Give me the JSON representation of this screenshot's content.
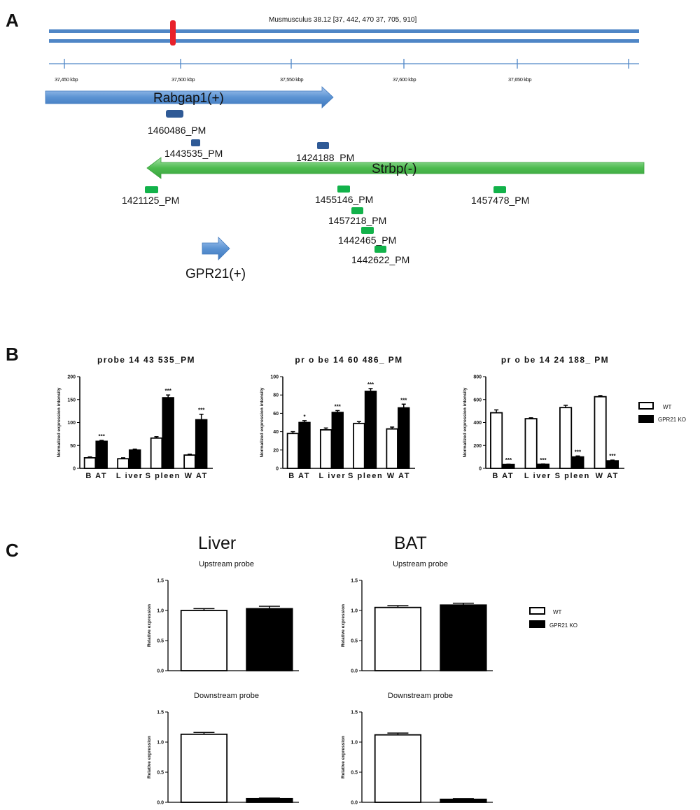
{
  "panel_letters": {
    "a": "A",
    "b": "B",
    "c": "C"
  },
  "panel_a": {
    "chromosome_label": "Musmusculus 38.12 [37, 442, 470 37, 705, 910]",
    "axis_ticks": [
      "37,450 kbp",
      "37,500 kbp",
      "37,550 kbp",
      "37,600 kbp",
      "37,650 kbp"
    ],
    "genes": {
      "rabgap1": "Rabgap1(+)",
      "strbp": "Strbp(-)",
      "gpr21": "GPR21(+)"
    },
    "probes_blue": [
      "1460486_PM",
      "1443535_PM",
      "1424188_PM"
    ],
    "probes_green": [
      "1421125_PM",
      "1455146_PM",
      "1457218_PM",
      "1442465_PM",
      "1442622_PM",
      "1457478_PM"
    ],
    "colors": {
      "chromosome": "#4f86c6",
      "marker": "#e8212b",
      "rabgap1_arrow": "#5b93d3",
      "strbp_arrow": "#4dbb4f",
      "probe_blue": "#2f5a96",
      "probe_green": "#12b24a"
    }
  },
  "legend": {
    "wt": "WT",
    "ko": "GPR21 KO"
  },
  "chart_data": [
    {
      "type": "bar",
      "title": "probe 14 43 535_PM",
      "ylabel": "Normalized expression intensity",
      "ylim": [
        0,
        200
      ],
      "yticks": [
        "0",
        "50",
        "100",
        "150",
        "200"
      ],
      "categories": [
        "B AT",
        "L iver",
        "S pleen",
        "W AT"
      ],
      "series": [
        {
          "name": "WT",
          "values": [
            23,
            21,
            66,
            29
          ],
          "errors": [
            2,
            2,
            3,
            2
          ]
        },
        {
          "name": "GPR21 KO",
          "values": [
            59,
            40,
            154,
            106
          ],
          "errors": [
            2,
            2,
            6,
            12
          ]
        }
      ],
      "significance": [
        "***",
        "",
        "***",
        "***"
      ]
    },
    {
      "type": "bar",
      "title": "pr o be 14 60 486_ PM",
      "ylabel": "Normalized expression intensity",
      "ylim": [
        0,
        100
      ],
      "yticks": [
        "0",
        "20",
        "40",
        "60",
        "80",
        "100"
      ],
      "categories": [
        "B AT",
        "L iver",
        "S pleen",
        "W AT"
      ],
      "series": [
        {
          "name": "WT",
          "values": [
            38,
            42,
            49,
            43
          ],
          "errors": [
            2,
            2,
            2,
            2
          ]
        },
        {
          "name": "GPR21 KO",
          "values": [
            50,
            61,
            84,
            66
          ],
          "errors": [
            2,
            2,
            3,
            4
          ]
        }
      ],
      "significance": [
        "*",
        "***",
        "***",
        "***"
      ]
    },
    {
      "type": "bar",
      "title": "pr o be 14 24 188_ PM",
      "ylabel": "Normalized expression intensity",
      "ylim": [
        0,
        800
      ],
      "yticks": [
        "0",
        "200",
        "400",
        "600",
        "800"
      ],
      "categories": [
        "B AT",
        "L iver",
        "S pleen",
        "W AT"
      ],
      "series": [
        {
          "name": "WT",
          "values": [
            485,
            433,
            530,
            625
          ],
          "errors": [
            25,
            8,
            20,
            10
          ]
        },
        {
          "name": "GPR21 KO",
          "values": [
            33,
            35,
            100,
            66
          ],
          "errors": [
            3,
            3,
            8,
            6
          ]
        }
      ],
      "significance": [
        "***",
        "***",
        "***",
        "***"
      ]
    },
    {
      "type": "bar",
      "group_title": "Liver",
      "title": "Upstream probe",
      "ylabel": "Relative expression",
      "ylim": [
        0,
        1.5
      ],
      "yticks": [
        "0.0",
        "0.5",
        "1.0",
        "1.5"
      ],
      "series": [
        {
          "name": "WT",
          "values": [
            1.0
          ],
          "errors": [
            0.03
          ]
        },
        {
          "name": "GPR21 KO",
          "values": [
            1.03
          ],
          "errors": [
            0.04
          ]
        }
      ]
    },
    {
      "type": "bar",
      "group_title": "BAT",
      "title": "Upstream probe",
      "ylabel": "Relative expression",
      "ylim": [
        0,
        1.5
      ],
      "yticks": [
        "0.0",
        "0.5",
        "1.0",
        "1.5"
      ],
      "series": [
        {
          "name": "WT",
          "values": [
            1.05
          ],
          "errors": [
            0.03
          ]
        },
        {
          "name": "GPR21 KO",
          "values": [
            1.09
          ],
          "errors": [
            0.03
          ]
        }
      ]
    },
    {
      "type": "bar",
      "title": "Downstream probe",
      "ylabel": "Relative expression",
      "ylim": [
        0,
        1.5
      ],
      "yticks": [
        "0.0",
        "0.5",
        "1.0",
        "1.5"
      ],
      "series": [
        {
          "name": "WT",
          "values": [
            1.13
          ],
          "errors": [
            0.03
          ]
        },
        {
          "name": "GPR21 KO",
          "values": [
            0.06
          ],
          "errors": [
            0.01
          ]
        }
      ]
    },
    {
      "type": "bar",
      "title": "Downstream probe",
      "ylabel": "Relative expression",
      "ylim": [
        0,
        1.5
      ],
      "yticks": [
        "0.0",
        "0.5",
        "1.0",
        "1.5"
      ],
      "series": [
        {
          "name": "WT",
          "values": [
            1.12
          ],
          "errors": [
            0.03
          ]
        },
        {
          "name": "GPR21 KO",
          "values": [
            0.05
          ],
          "errors": [
            0.01
          ]
        }
      ]
    }
  ]
}
